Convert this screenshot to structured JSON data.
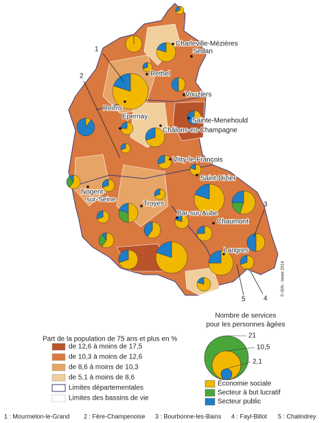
{
  "map": {
    "cities": [
      {
        "label": [
          "Charleville-Mézières"
        ]
      },
      {
        "label": [
          "Sedan"
        ]
      },
      {
        "label": [
          "Rethel"
        ]
      },
      {
        "label": [
          "Vouziers"
        ]
      },
      {
        "label": [
          "Reims"
        ]
      },
      {
        "label": [
          "Epernay"
        ]
      },
      {
        "label": [
          "Sainte-Menehould"
        ]
      },
      {
        "label": [
          "Châlons-en-Champagne"
        ]
      },
      {
        "label": [
          "Vitry-le-François"
        ]
      },
      {
        "label": [
          "Saint-Dizier"
        ]
      },
      {
        "label": [
          "Nogent-",
          "sur-Seine"
        ]
      },
      {
        "label": [
          "Troyes"
        ]
      },
      {
        "label": [
          "Bar-sur-Aube"
        ]
      },
      {
        "label": [
          "Chaumont"
        ]
      },
      {
        "label": [
          "Langres"
        ]
      }
    ],
    "callouts": [
      "1",
      "2",
      "3",
      "4",
      "5"
    ],
    "credit": "© IGN - Insee 2014"
  },
  "legend_share": {
    "title": "Part de la population de 75 ans et plus en %",
    "classes": [
      {
        "label": "de 12,6 à moins de 17,5",
        "color": "#b8532a"
      },
      {
        "label": "de 10,3 à moins de 12,6",
        "color": "#d9783f"
      },
      {
        "label": "de 8,6 à moins de 10,3",
        "color": "#e6a566"
      },
      {
        "label": "de 5,1 à moins de 8,6",
        "color": "#f1cf9c"
      }
    ],
    "boundaries": [
      {
        "label": "Limites départementales",
        "color": "#3a3a7a"
      },
      {
        "label": "Limites des bassins de vie",
        "color": "#d8d8d8"
      }
    ]
  },
  "legend_services": {
    "title": [
      "Nombre de services",
      "pour les personnes âgées"
    ],
    "sizes": [
      "21",
      "10,5",
      "2,1"
    ],
    "sectors": [
      {
        "label": "Économie sociale",
        "color": "#f2b800"
      },
      {
        "label": "Secteur à but lucratif",
        "color": "#4aa63a"
      },
      {
        "label": "Secteur public",
        "color": "#1e7ec8"
      }
    ]
  },
  "footnote": [
    "1 : Mourmelon-le-Grand",
    "2 : Fère-Champenoise",
    "3 : Bourbonne-les-Bains",
    "4 : Fayl-Billot",
    "5 : Chalindrey"
  ]
}
